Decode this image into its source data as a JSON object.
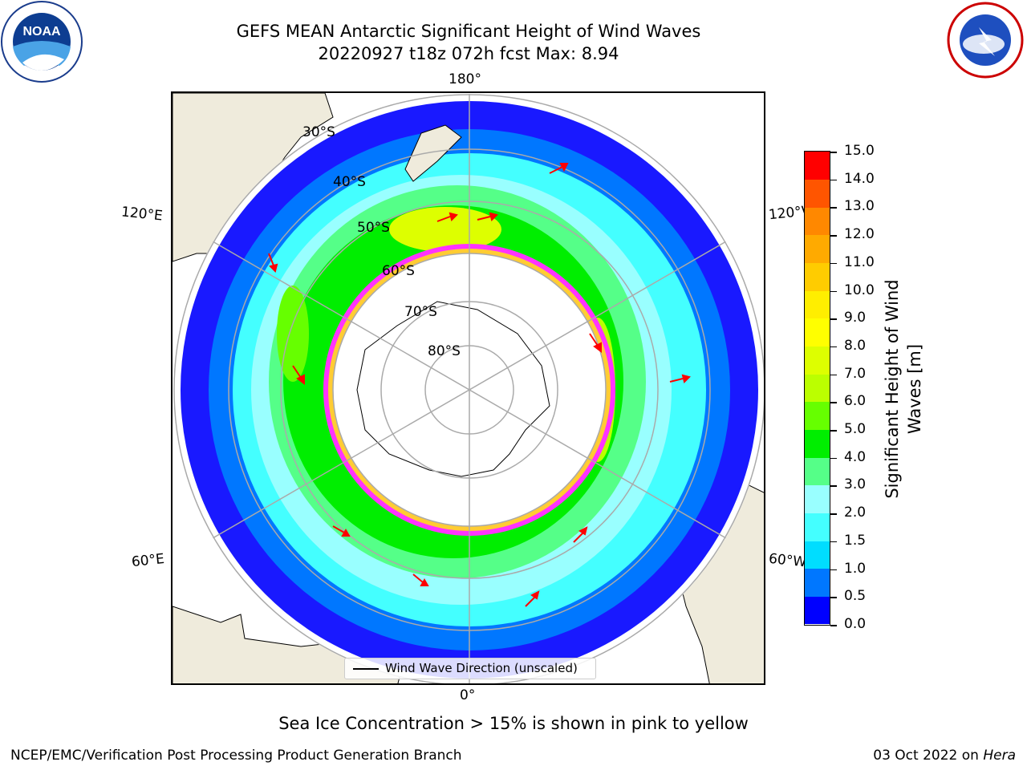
{
  "header": {
    "title_line1": "GEFS MEAN Antarctic Significant Height of Wind Waves",
    "title_line2": "20220927 t18z 072h fcst   Max: 8.94"
  },
  "logos": {
    "left": "NOAA",
    "right": "NATIONAL WEATHER SERVICE"
  },
  "map": {
    "projection": "south polar stereographic",
    "longitude_labels": {
      "top": "180°",
      "bottom": "0°",
      "left_upper": "120°E",
      "left_lower": "60°E",
      "right_upper": "120°W",
      "right_lower": "60°W"
    },
    "latitude_labels": [
      "30°S",
      "40°S",
      "50°S",
      "60°S",
      "70°S",
      "80°S"
    ],
    "legend_label": "Wind Wave Direction (unscaled)",
    "arrow_color": "#ff0000",
    "land_color": "#efebdc",
    "sea_ice_colors": [
      "#ff33ff",
      "#ffcc33"
    ]
  },
  "colorbar": {
    "title": "Significant Height of Wind Waves [m]",
    "ticks": [
      "0.0",
      "0.5",
      "1.0",
      "1.5",
      "2.0",
      "3.0",
      "4.0",
      "5.0",
      "6.0",
      "7.0",
      "8.0",
      "9.0",
      "10.0",
      "11.0",
      "12.0",
      "13.0",
      "14.0",
      "15.0"
    ],
    "colors": [
      "#0000ff",
      "#0077ff",
      "#00ddff",
      "#44ffff",
      "#99ffff",
      "#55ff88",
      "#00ee00",
      "#66ff00",
      "#bbff00",
      "#ddff00",
      "#ffff00",
      "#ffee00",
      "#ffcc00",
      "#ffaa00",
      "#ff8800",
      "#ff5500",
      "#ff0000"
    ]
  },
  "caption": "Sea Ice Concentration > 15% is shown in pink to yellow",
  "footer": {
    "left": "NCEP/EMC/Verification Post Processing Product Generation Branch",
    "date": "03 Oct 2022 on",
    "machine": "Hera"
  }
}
